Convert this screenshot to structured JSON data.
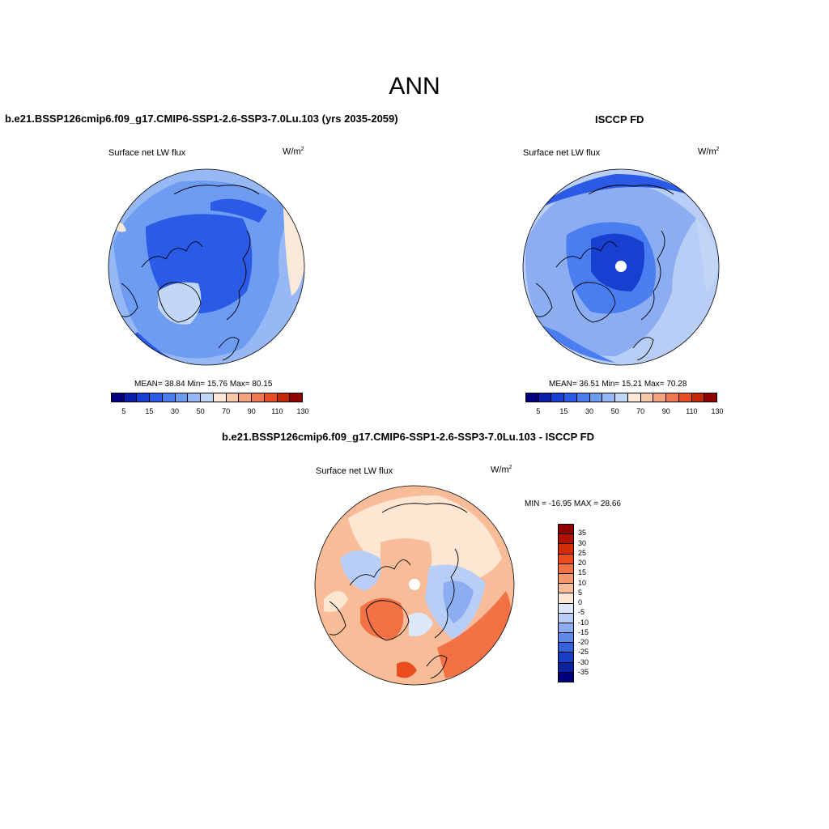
{
  "figure": {
    "title": "ANN",
    "panels": [
      {
        "title": "b.e21.BSSP126cmip6.f09_g17.CMIP6-SSP1-2.6-SSP3-7.0Lu.103 (yrs 2035-2059)",
        "variable": "Surface net LW flux",
        "units_base": "W/m",
        "units_exp": "2",
        "stats": "MEAN=  38.84  Min=  15.76  Max=  80.15"
      },
      {
        "title": "ISCCP FD",
        "variable": "Surface net LW flux",
        "units_base": "W/m",
        "units_exp": "2",
        "stats": "MEAN=  36.51  Min=  15.21  Max=  70.28"
      },
      {
        "title": "b.e21.BSSP126cmip6.f09_g17.CMIP6-SSP1-2.6-SSP3-7.0Lu.103 - ISCCP FD",
        "variable": "Surface net LW flux",
        "units_base": "W/m",
        "units_exp": "2",
        "stats": "MIN = -16.95 MAX =  28.66"
      }
    ],
    "colorbar_abs": {
      "tick_labels": [
        "5",
        "15",
        "30",
        "50",
        "70",
        "90",
        "110",
        "130"
      ],
      "colors": [
        "#00007f",
        "#0a1fa8",
        "#1840d0",
        "#2a5ae6",
        "#4a7ef0",
        "#6e9cf2",
        "#96b8f4",
        "#c2d6f6",
        "#fbe9d9",
        "#f8c8aa",
        "#f5a27e",
        "#f07850",
        "#e54e24",
        "#c42808",
        "#8c0000"
      ]
    },
    "colorbar_diff": {
      "tick_labels": [
        "35",
        "30",
        "25",
        "20",
        "15",
        "10",
        "5",
        "0",
        "-5",
        "-10",
        "-15",
        "-20",
        "-25",
        "-30",
        "-35"
      ],
      "colors": [
        "#8c0000",
        "#b01200",
        "#d42e06",
        "#ea4c1e",
        "#f27246",
        "#f6966c",
        "#f9bc98",
        "#fde6d2",
        "#dde8fa",
        "#b8cef6",
        "#8cadf2",
        "#5e88ea",
        "#3562dc",
        "#1a3ec2",
        "#0a22a0",
        "#00007f"
      ]
    }
  }
}
